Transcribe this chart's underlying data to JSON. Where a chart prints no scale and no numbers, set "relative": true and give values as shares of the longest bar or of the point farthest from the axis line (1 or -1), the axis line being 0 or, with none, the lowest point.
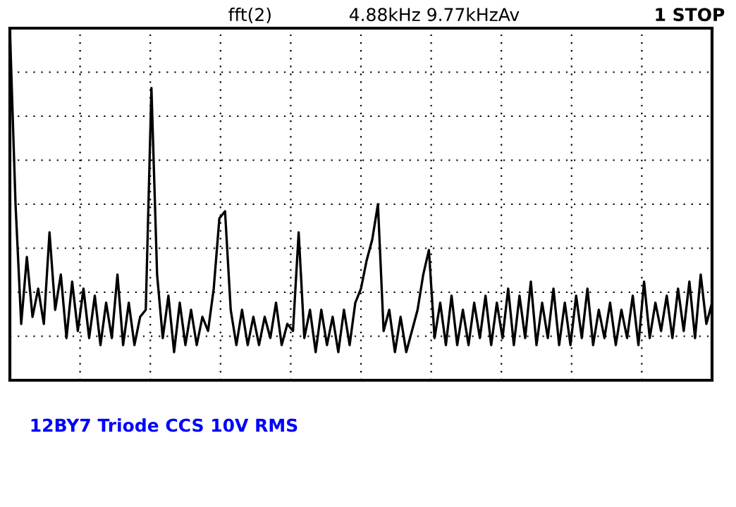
{
  "chart_data": {
    "type": "line",
    "relative": true,
    "grid": true,
    "categories": [
      null,
      null,
      null,
      null,
      null,
      null,
      null,
      null,
      null,
      null,
      null,
      null,
      null,
      null,
      null,
      null,
      null,
      null,
      null,
      null,
      null,
      null,
      null,
      null,
      null,
      null,
      null,
      null,
      null,
      null,
      null,
      null,
      null,
      null,
      null,
      null,
      null,
      null,
      null,
      null,
      null,
      null,
      null,
      null,
      null,
      null,
      null,
      null,
      null,
      null,
      null,
      null,
      null,
      null,
      null,
      null,
      null,
      null,
      null,
      null,
      null,
      null,
      null,
      null,
      null,
      null,
      null,
      null,
      null,
      null,
      null,
      null,
      null,
      null,
      null,
      null,
      null,
      null,
      null,
      null,
      null,
      null,
      null,
      null,
      null,
      null,
      null,
      null,
      null,
      null,
      null,
      null,
      null,
      null,
      null,
      null,
      null,
      null,
      null,
      null,
      null,
      null,
      null,
      null,
      null,
      null,
      null,
      null,
      null,
      null,
      null,
      null,
      null,
      null,
      null,
      null,
      null,
      null,
      null,
      null,
      null,
      null,
      null,
      null,
      null
    ],
    "series": [
      {
        "color": "#000000",
        "values": [
          1.0,
          0.5,
          0.16,
          0.35,
          0.18,
          0.26,
          0.16,
          0.42,
          0.2,
          0.3,
          0.12,
          0.28,
          0.14,
          0.26,
          0.12,
          0.24,
          0.1,
          0.22,
          0.12,
          0.3,
          0.1,
          0.22,
          0.1,
          0.18,
          0.2,
          0.83,
          0.3,
          0.12,
          0.24,
          0.08,
          0.22,
          0.1,
          0.2,
          0.1,
          0.18,
          0.14,
          0.26,
          0.46,
          0.48,
          0.2,
          0.1,
          0.2,
          0.1,
          0.18,
          0.1,
          0.18,
          0.12,
          0.22,
          0.1,
          0.16,
          0.14,
          0.42,
          0.12,
          0.2,
          0.08,
          0.2,
          0.1,
          0.18,
          0.08,
          0.2,
          0.1,
          0.22,
          0.26,
          0.34,
          0.4,
          0.5,
          0.14,
          0.2,
          0.08,
          0.18,
          0.08,
          0.14,
          0.2,
          0.3,
          0.37,
          0.12,
          0.22,
          0.1,
          0.24,
          0.1,
          0.2,
          0.1,
          0.22,
          0.12,
          0.24,
          0.1,
          0.22,
          0.12,
          0.26,
          0.1,
          0.24,
          0.12,
          0.28,
          0.1,
          0.22,
          0.12,
          0.26,
          0.1,
          0.22,
          0.1,
          0.24,
          0.12,
          0.26,
          0.1,
          0.2,
          0.12,
          0.22,
          0.1,
          0.2,
          0.12,
          0.24,
          0.1,
          0.28,
          0.12,
          0.22,
          0.14,
          0.24,
          0.12,
          0.26,
          0.14,
          0.28,
          0.12,
          0.3,
          0.16,
          0.22
        ]
      }
    ],
    "annotations": [
      "fft(2)",
      "4.88kHz 9.77kHzAv",
      "1 STOP",
      "12BY7 Triode CCS 10V RMS"
    ]
  }
}
